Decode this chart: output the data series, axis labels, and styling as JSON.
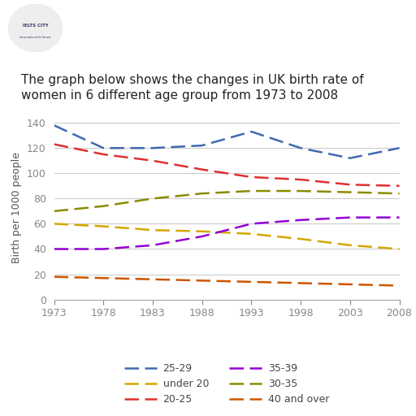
{
  "title": "The graph below shows the changes in UK birth rate of\nwomen in 6 different age group from 1973 to 2008",
  "ylabel": "Birth per 1000 people",
  "years": [
    1973,
    1978,
    1983,
    1988,
    1993,
    1998,
    2003,
    2008
  ],
  "series": {
    "25-29": {
      "color": "#4169b0",
      "values": [
        138,
        120,
        120,
        122,
        133,
        120,
        112,
        120
      ]
    },
    "20-25": {
      "color": "#e03030",
      "values": [
        123,
        115,
        110,
        103,
        97,
        95,
        91,
        90
      ]
    },
    "30-35": {
      "color": "#8b8b00",
      "values": [
        70,
        74,
        80,
        84,
        86,
        86,
        85,
        84
      ]
    },
    "under 20": {
      "color": "#d4a800",
      "values": [
        60,
        58,
        55,
        54,
        52,
        48,
        43,
        40
      ]
    },
    "35-39": {
      "color": "#9400d3",
      "values": [
        40,
        40,
        43,
        50,
        60,
        63,
        65,
        65
      ]
    },
    "40 and over": {
      "color": "#cc5500",
      "values": [
        18,
        17,
        16,
        15,
        14,
        13,
        12,
        11
      ]
    }
  },
  "ylim": [
    0,
    145
  ],
  "yticks": [
    0,
    20,
    40,
    60,
    80,
    100,
    120,
    140
  ],
  "background_color": "#ffffff",
  "legend_order": [
    "25-29",
    "under 20",
    "20-25",
    "35-39",
    "30-35",
    "40 and over"
  ],
  "title_fontsize": 11,
  "tick_fontsize": 9,
  "ylabel_fontsize": 9
}
